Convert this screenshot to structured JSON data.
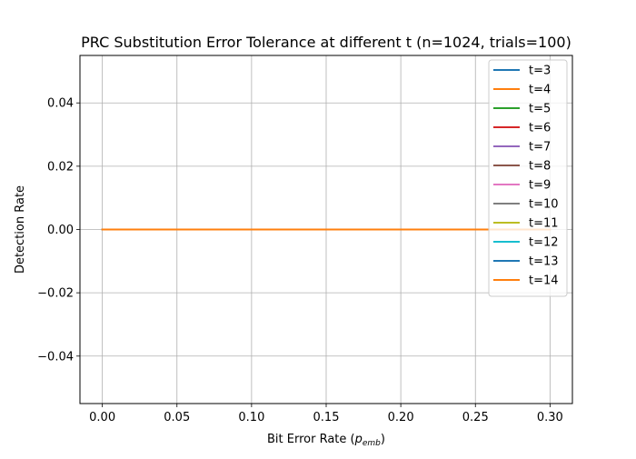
{
  "chart_data": {
    "type": "line",
    "title": "PRC Substitution Error Tolerance at different t (n=1024, trials=100)",
    "xlabel_main": "Bit Error Rate (",
    "xlabel_var": "p",
    "xlabel_sub": "emb",
    "xlabel_close": ")",
    "ylabel": "Detection Rate",
    "xlim": [
      -0.015,
      0.315
    ],
    "ylim": [
      -0.055,
      0.055
    ],
    "xticks": [
      0.0,
      0.05,
      0.1,
      0.15,
      0.2,
      0.25,
      0.3
    ],
    "xtick_labels": [
      "0.00",
      "0.05",
      "0.10",
      "0.15",
      "0.20",
      "0.25",
      "0.30"
    ],
    "yticks": [
      -0.04,
      -0.02,
      0.0,
      0.02,
      0.04
    ],
    "ytick_labels": [
      "−0.04",
      "−0.02",
      "0.00",
      "0.02",
      "0.04"
    ],
    "grid": true,
    "legend_position": "top-right",
    "x": [
      0.0,
      0.05,
      0.1,
      0.15,
      0.2,
      0.25,
      0.3
    ],
    "series": [
      {
        "name": "t=3",
        "color": "#1f77b4",
        "values": [
          0,
          0,
          0,
          0,
          0,
          0,
          0
        ]
      },
      {
        "name": "t=4",
        "color": "#ff7f0e",
        "values": [
          0,
          0,
          0,
          0,
          0,
          0,
          0
        ]
      },
      {
        "name": "t=5",
        "color": "#2ca02c",
        "values": [
          0,
          0,
          0,
          0,
          0,
          0,
          0
        ]
      },
      {
        "name": "t=6",
        "color": "#d62728",
        "values": [
          0,
          0,
          0,
          0,
          0,
          0,
          0
        ]
      },
      {
        "name": "t=7",
        "color": "#9467bd",
        "values": [
          0,
          0,
          0,
          0,
          0,
          0,
          0
        ]
      },
      {
        "name": "t=8",
        "color": "#8c564b",
        "values": [
          0,
          0,
          0,
          0,
          0,
          0,
          0
        ]
      },
      {
        "name": "t=9",
        "color": "#e377c2",
        "values": [
          0,
          0,
          0,
          0,
          0,
          0,
          0
        ]
      },
      {
        "name": "t=10",
        "color": "#7f7f7f",
        "values": [
          0,
          0,
          0,
          0,
          0,
          0,
          0
        ]
      },
      {
        "name": "t=11",
        "color": "#bcbd22",
        "values": [
          0,
          0,
          0,
          0,
          0,
          0,
          0
        ]
      },
      {
        "name": "t=12",
        "color": "#17becf",
        "values": [
          0,
          0,
          0,
          0,
          0,
          0,
          0
        ]
      },
      {
        "name": "t=13",
        "color": "#1f77b4",
        "values": [
          0,
          0,
          0,
          0,
          0,
          0,
          0
        ]
      },
      {
        "name": "t=14",
        "color": "#ff7f0e",
        "values": [
          0,
          0,
          0,
          0,
          0,
          0,
          0
        ]
      }
    ]
  }
}
